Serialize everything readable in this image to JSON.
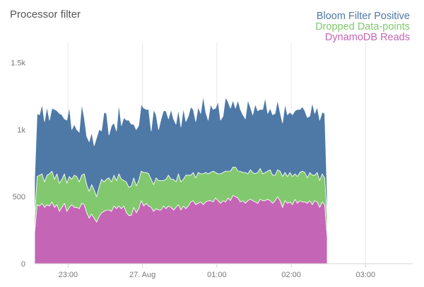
{
  "chart_data": {
    "type": "area",
    "stacked": true,
    "title": "Processor filter",
    "legend_position": "top-right",
    "grid": "vertical",
    "ylim": [
      0,
      1650
    ],
    "y_ticks": [
      {
        "value": 0,
        "label": "0"
      },
      {
        "value": 500,
        "label": "500"
      },
      {
        "value": 1000,
        "label": "1k"
      },
      {
        "value": 1500,
        "label": "1.5k"
      }
    ],
    "xlim": [
      "22:33",
      "03:38"
    ],
    "x_ticks": [
      {
        "value": "23:00",
        "label": "23:00"
      },
      {
        "value": "00:00",
        "label": "27. Aug"
      },
      {
        "value": "01:00",
        "label": "01:00"
      },
      {
        "value": "02:00",
        "label": "02:00"
      },
      {
        "value": "03:00",
        "label": "03:00"
      }
    ],
    "x_start": "22:33",
    "x_step_minutes": 2,
    "series": [
      {
        "name": "DynamoDB Reads",
        "color": "#c466b5",
        "values": [
          230,
          440,
          430,
          450,
          420,
          440,
          430,
          460,
          420,
          440,
          390,
          420,
          450,
          390,
          420,
          440,
          420,
          420,
          410,
          450,
          440,
          380,
          340,
          370,
          340,
          310,
          350,
          380,
          390,
          400,
          400,
          390,
          430,
          410,
          430,
          410,
          430,
          380,
          360,
          360,
          420,
          380,
          410,
          470,
          430,
          450,
          430,
          420,
          390,
          410,
          400,
          400,
          430,
          410,
          430,
          420,
          400,
          420,
          440,
          400,
          430,
          410,
          430,
          460,
          470,
          440,
          450,
          460,
          440,
          460,
          470,
          470,
          460,
          490,
          470,
          450,
          470,
          460,
          490,
          470,
          510,
          500,
          490,
          460,
          470,
          450,
          470,
          480,
          470,
          460,
          450,
          480,
          470,
          470,
          480,
          470,
          450,
          470,
          500,
          470,
          420,
          470,
          450,
          460,
          440,
          480,
          450,
          470,
          460,
          460,
          450,
          470,
          440,
          470,
          460,
          420,
          460,
          440,
          200
        ]
      },
      {
        "name": "Dropped Data-points",
        "color": "#82c86e",
        "values": [
          110,
          210,
          230,
          220,
          190,
          220,
          240,
          230,
          210,
          230,
          210,
          210,
          220,
          210,
          230,
          190,
          240,
          230,
          200,
          210,
          230,
          210,
          200,
          220,
          210,
          190,
          220,
          250,
          220,
          230,
          240,
          220,
          230,
          210,
          240,
          220,
          190,
          230,
          210,
          220,
          220,
          200,
          210,
          220,
          250,
          230,
          240,
          210,
          200,
          230,
          220,
          220,
          190,
          220,
          230,
          210,
          230,
          190,
          230,
          210,
          200,
          250,
          230,
          200,
          210,
          200,
          230,
          210,
          230,
          220,
          200,
          210,
          230,
          190,
          200,
          220,
          210,
          230,
          200,
          220,
          210,
          220,
          200,
          230,
          210,
          230,
          200,
          220,
          210,
          210,
          230,
          230,
          200,
          210,
          210,
          230,
          210,
          190,
          200,
          220,
          230,
          210,
          200,
          220,
          210,
          190,
          200,
          210,
          230,
          220,
          190,
          210,
          220,
          190,
          220,
          200,
          210,
          200,
          150
        ]
      },
      {
        "name": "Bloom Filter Positive",
        "color": "#4e79a7",
        "values": [
          290,
          470,
          450,
          520,
          450,
          510,
          400,
          470,
          520,
          470,
          520,
          480,
          410,
          470,
          520,
          370,
          380,
          350,
          370,
          530,
          420,
          360,
          370,
          390,
          330,
          440,
          430,
          360,
          520,
          490,
          320,
          420,
          390,
          370,
          520,
          400,
          470,
          460,
          500,
          460,
          400,
          420,
          410,
          500,
          480,
          470,
          480,
          360,
          560,
          470,
          380,
          460,
          520,
          510,
          420,
          520,
          450,
          430,
          480,
          410,
          530,
          400,
          440,
          510,
          470,
          420,
          490,
          450,
          580,
          450,
          400,
          510,
          460,
          480,
          540,
          400,
          420,
          550,
          520,
          470,
          500,
          440,
          530,
          460,
          430,
          400,
          550,
          470,
          430,
          520,
          460,
          440,
          480,
          560,
          430,
          460,
          450,
          460,
          520,
          440,
          400,
          510,
          460,
          450,
          460,
          470,
          500,
          470,
          480,
          460,
          450,
          420,
          540,
          460,
          490,
          450,
          460,
          480,
          160
        ]
      }
    ]
  }
}
